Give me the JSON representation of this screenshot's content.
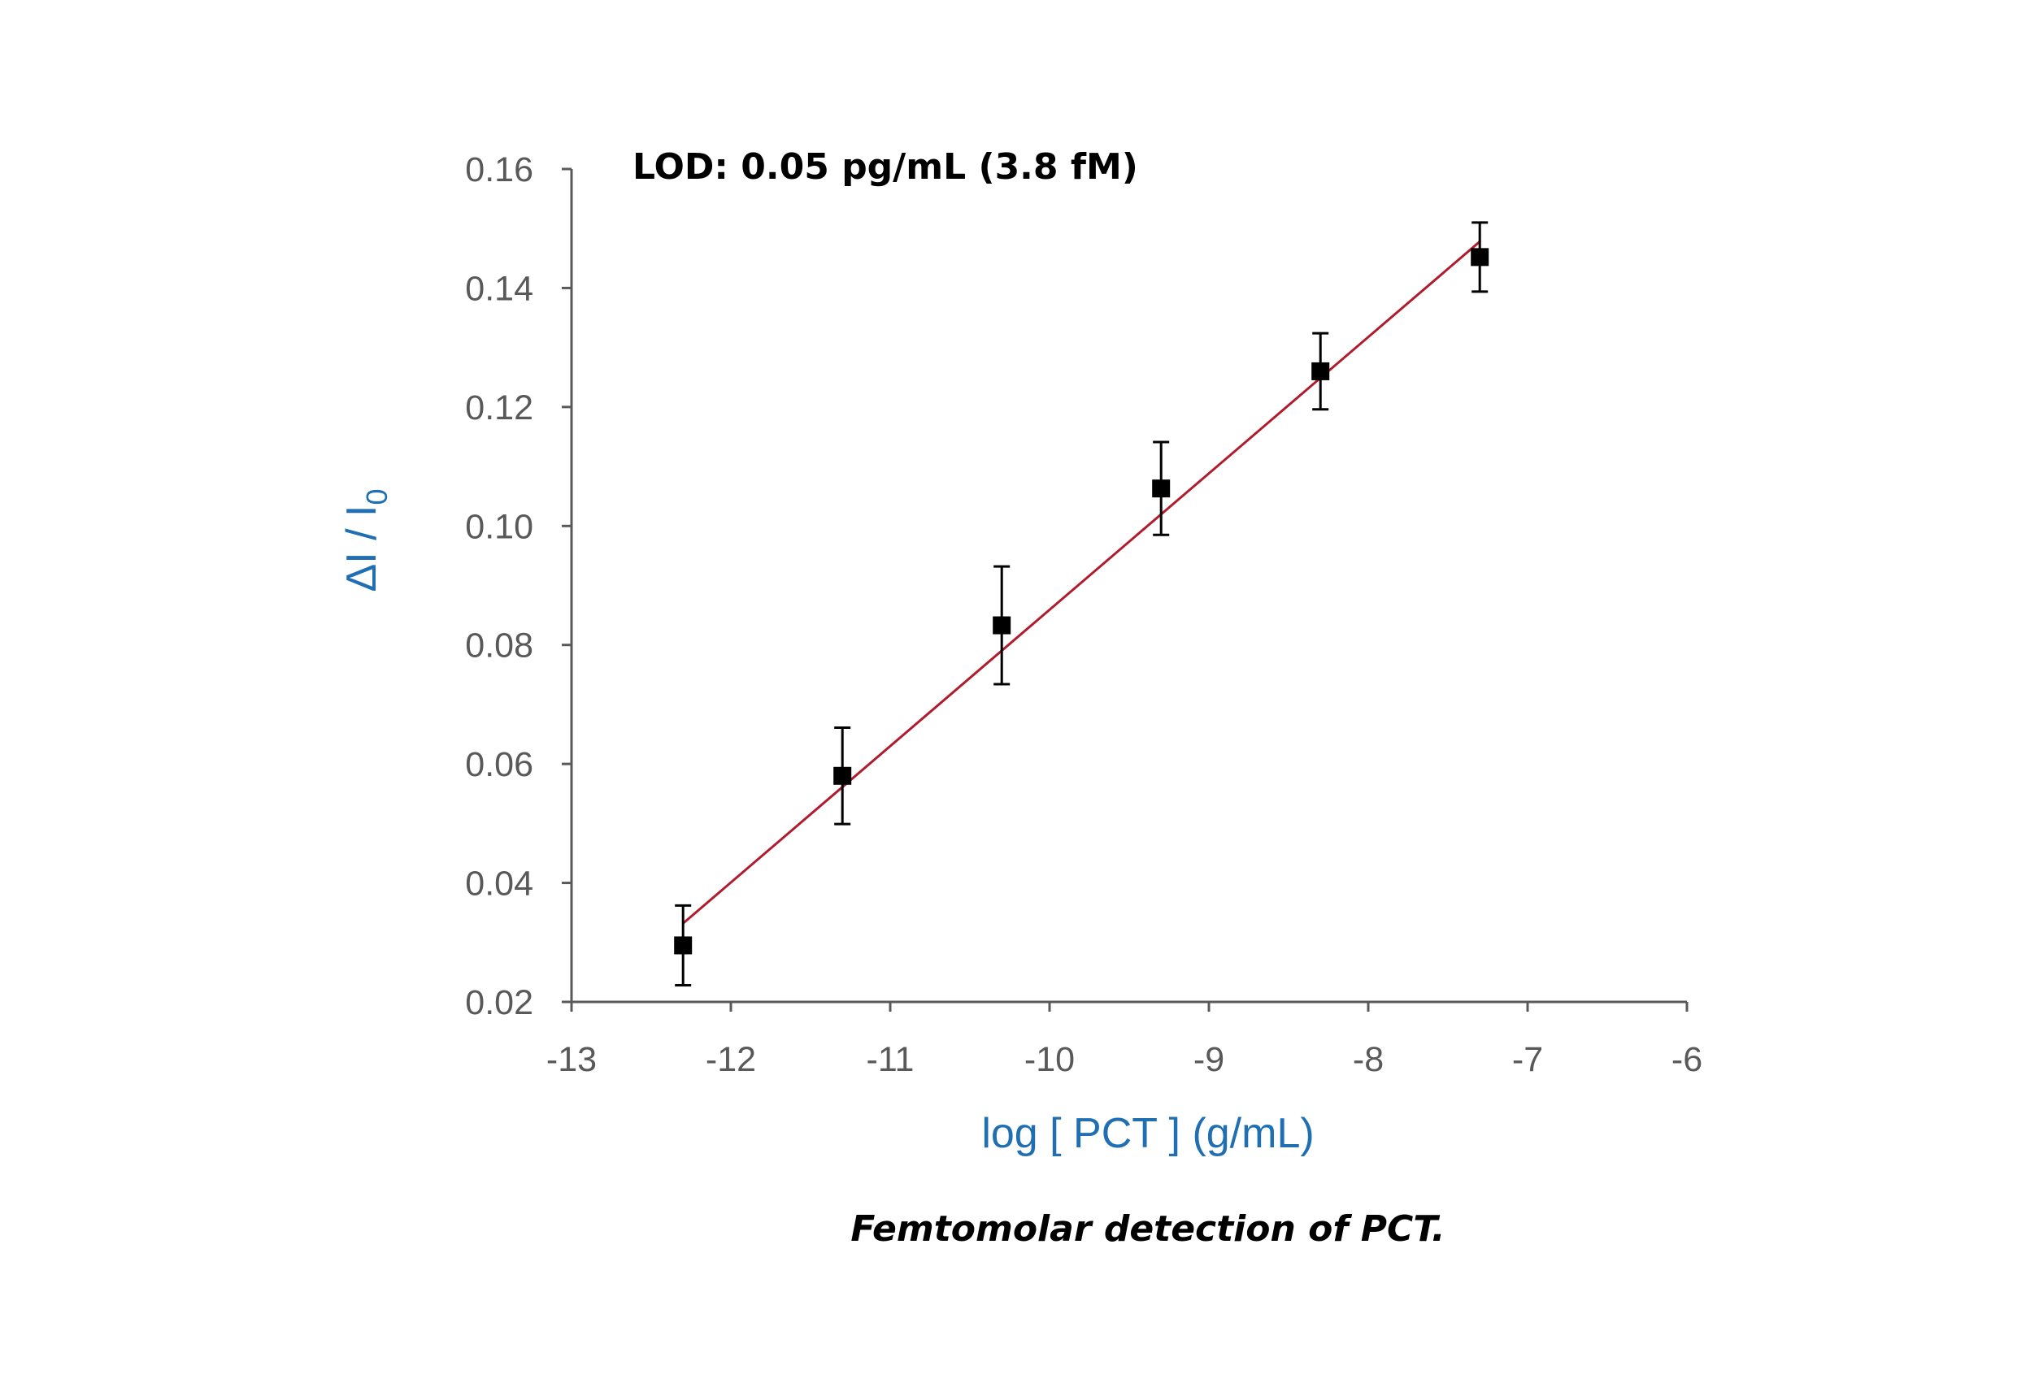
{
  "chart_data": {
    "type": "scatter",
    "annotation": "LOD: 0.05 pg/mL (3.8 fM)",
    "caption": "Femtomolar detection of PCT.",
    "xlabel": "log [ PCT ] (g/mL)",
    "ylabel_main": "ΔI / I",
    "ylabel_sub": "0",
    "xlim": [
      -13,
      -6
    ],
    "ylim": [
      0.02,
      0.16
    ],
    "x_ticks": [
      -13,
      -12,
      -11,
      -10,
      -9,
      -8,
      -7,
      -6
    ],
    "x_tick_labels": [
      "-13",
      "-12",
      "-11",
      "-10",
      "-9",
      "-8",
      "-7",
      "-6"
    ],
    "y_ticks": [
      0.02,
      0.04,
      0.06,
      0.08,
      0.1,
      0.12,
      0.14,
      0.16
    ],
    "y_tick_labels": [
      "0.02",
      "0.04",
      "0.06",
      "0.08",
      "0.10",
      "0.12",
      "0.14",
      "0.16"
    ],
    "grid": false,
    "series": [
      {
        "x": [
          -12.3,
          -11.3,
          -10.3,
          -9.3,
          -8.3,
          -7.3
        ],
        "y": [
          0.0295,
          0.058,
          0.0833,
          0.1063,
          0.126,
          0.1452
        ],
        "error": [
          0.0067,
          0.0081,
          0.0099,
          0.0078,
          0.0064,
          0.0058
        ],
        "marker": "square",
        "color": "#000000"
      }
    ],
    "fit_line": {
      "x": [
        -12.3,
        -7.3
      ],
      "y": [
        0.0332,
        0.1478
      ],
      "color": "#b01c2e"
    },
    "axis_title_color": "#1f6fb2",
    "tick_label_color": "#595959",
    "axis_color": "#595959"
  }
}
